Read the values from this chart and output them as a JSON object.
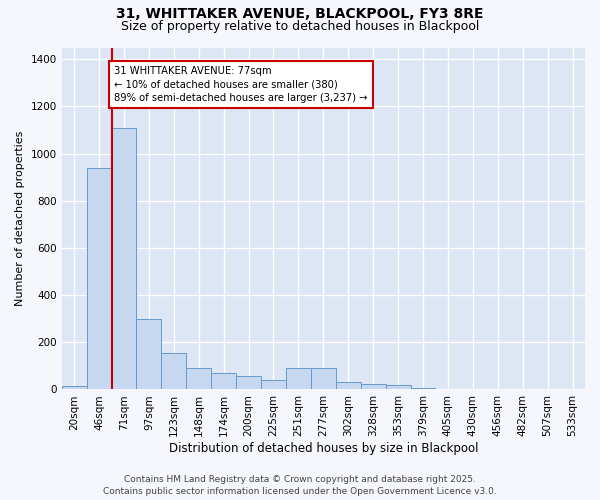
{
  "title": "31, WHITTAKER AVENUE, BLACKPOOL, FY3 8RE",
  "subtitle": "Size of property relative to detached houses in Blackpool",
  "xlabel": "Distribution of detached houses by size in Blackpool",
  "ylabel": "Number of detached properties",
  "categories": [
    "20sqm",
    "46sqm",
    "71sqm",
    "97sqm",
    "123sqm",
    "148sqm",
    "174sqm",
    "200sqm",
    "225sqm",
    "251sqm",
    "277sqm",
    "302sqm",
    "328sqm",
    "353sqm",
    "379sqm",
    "405sqm",
    "430sqm",
    "456sqm",
    "482sqm",
    "507sqm",
    "533sqm"
  ],
  "values": [
    15,
    940,
    1110,
    300,
    155,
    90,
    70,
    55,
    40,
    90,
    90,
    30,
    25,
    20,
    5,
    0,
    0,
    0,
    3,
    0,
    3
  ],
  "bar_color": "#c5d8f0",
  "bar_edge_color": "#6699cc",
  "vline_x": 1.5,
  "vline_color": "#cc0000",
  "annotation_text": "31 WHITTAKER AVENUE: 77sqm\n← 10% of detached houses are smaller (380)\n89% of semi-detached houses are larger (3,237) →",
  "annotation_box_color": "#cc0000",
  "fig_background_color": "#f5f7fd",
  "plot_background_color": "#dce6f5",
  "grid_color": "#ffffff",
  "footer": "Contains HM Land Registry data © Crown copyright and database right 2025.\nContains public sector information licensed under the Open Government Licence v3.0.",
  "ylim": [
    0,
    1450
  ],
  "yticks": [
    0,
    200,
    400,
    600,
    800,
    1000,
    1200,
    1400
  ],
  "title_fontsize": 10,
  "subtitle_fontsize": 9,
  "tick_fontsize": 7.5,
  "label_fontsize": 8,
  "xlabel_fontsize": 8.5,
  "footer_fontsize": 6.5
}
